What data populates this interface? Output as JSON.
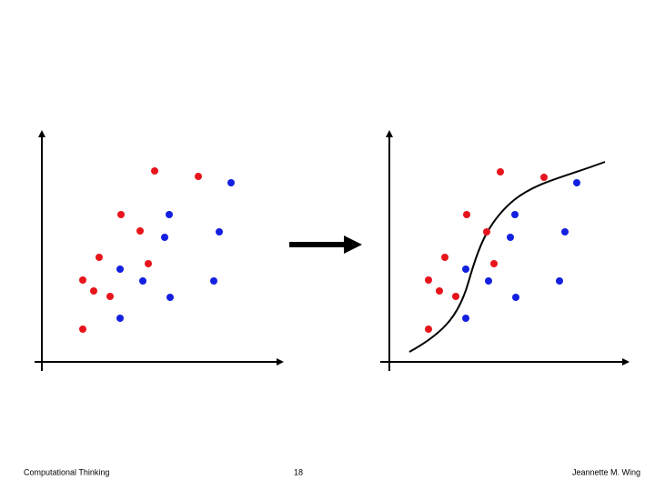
{
  "footer": {
    "left": "Computational Thinking",
    "center": "18",
    "right": "Jeannette M. Wing"
  }
}
